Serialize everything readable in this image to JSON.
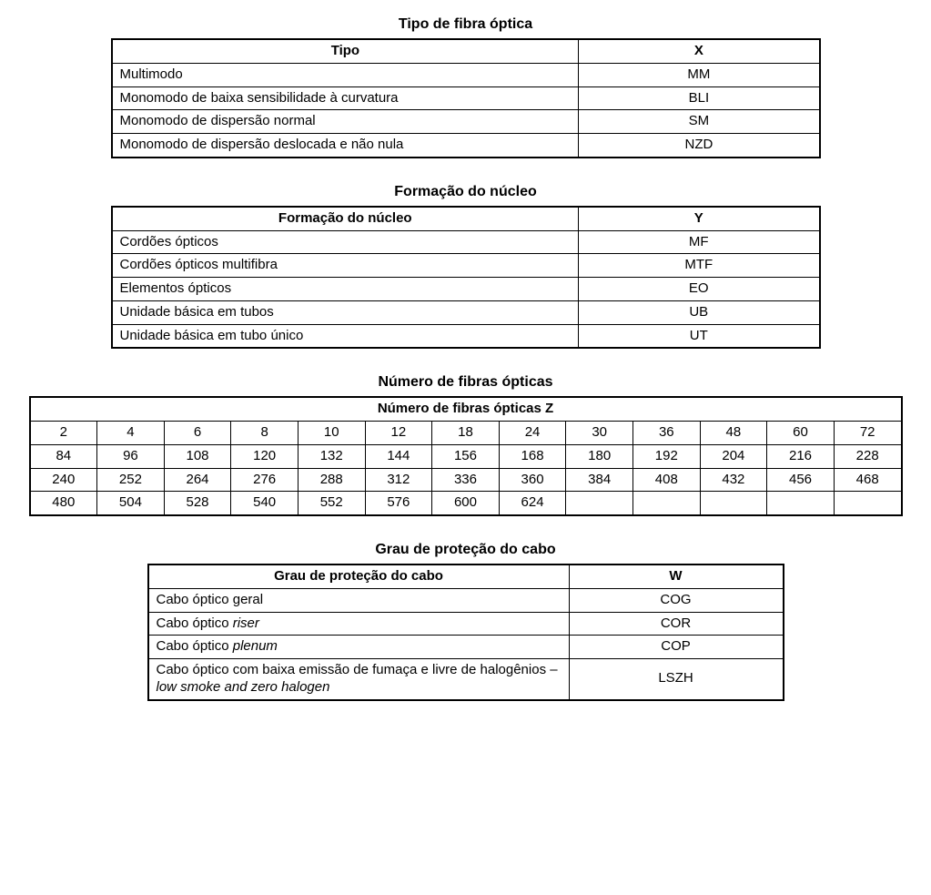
{
  "sections": [
    {
      "title": "Tipo de fibra óptica",
      "type": "two-col",
      "tableClass": "t2col",
      "headers": [
        "Tipo",
        "X"
      ],
      "rows": [
        {
          "c1": "Multimodo",
          "c2": "MM"
        },
        {
          "c1": "Monomodo de baixa sensibilidade à curvatura",
          "c2": "BLI"
        },
        {
          "c1": "Monomodo de dispersão normal",
          "c2": "SM"
        },
        {
          "c1": "Monomodo de dispersão deslocada e não nula",
          "c2": "NZD"
        }
      ]
    },
    {
      "title": "Formação do núcleo",
      "type": "two-col",
      "tableClass": "t2col",
      "headers": [
        "Formação do núcleo",
        "Y"
      ],
      "rows": [
        {
          "c1": "Cordões ópticos",
          "c2": "MF"
        },
        {
          "c1": "Cordões ópticos multifibra",
          "c2": "MTF"
        },
        {
          "c1": "Elementos ópticos",
          "c2": "EO"
        },
        {
          "c1": "Unidade básica em tubos",
          "c2": "UB"
        },
        {
          "c1": "Unidade básica em tubo único",
          "c2": "UT"
        }
      ]
    },
    {
      "title": "Número de fibras ópticas",
      "type": "grid",
      "tableClass": "tgrid",
      "gridHeader": "Número de fibras ópticas Z",
      "cols": 13,
      "gridRows": [
        [
          "2",
          "4",
          "6",
          "8",
          "10",
          "12",
          "18",
          "24",
          "30",
          "36",
          "48",
          "60",
          "72"
        ],
        [
          "84",
          "96",
          "108",
          "120",
          "132",
          "144",
          "156",
          "168",
          "180",
          "192",
          "204",
          "216",
          "228"
        ],
        [
          "240",
          "252",
          "264",
          "276",
          "288",
          "312",
          "336",
          "360",
          "384",
          "408",
          "432",
          "456",
          "468"
        ],
        [
          "480",
          "504",
          "528",
          "540",
          "552",
          "576",
          "600",
          "624",
          "",
          "",
          "",
          "",
          ""
        ]
      ]
    },
    {
      "title": "Grau de proteção do cabo",
      "type": "two-col-html",
      "tableClass": "t4",
      "headers": [
        "Grau de proteção do cabo",
        "W"
      ],
      "rows": [
        {
          "c1": "Cabo óptico geral",
          "c2": "COG"
        },
        {
          "c1": "Cabo óptico <span class=\"italic\">riser</span>",
          "c2": "COR"
        },
        {
          "c1": "Cabo óptico <span class=\"italic\">plenum</span>",
          "c2": "COP"
        },
        {
          "c1": "Cabo óptico com baixa emissão de fumaça e livre de halogênios – <span class=\"italic\">low smoke and zero halogen</span>",
          "c2": "LSZH"
        }
      ]
    }
  ]
}
